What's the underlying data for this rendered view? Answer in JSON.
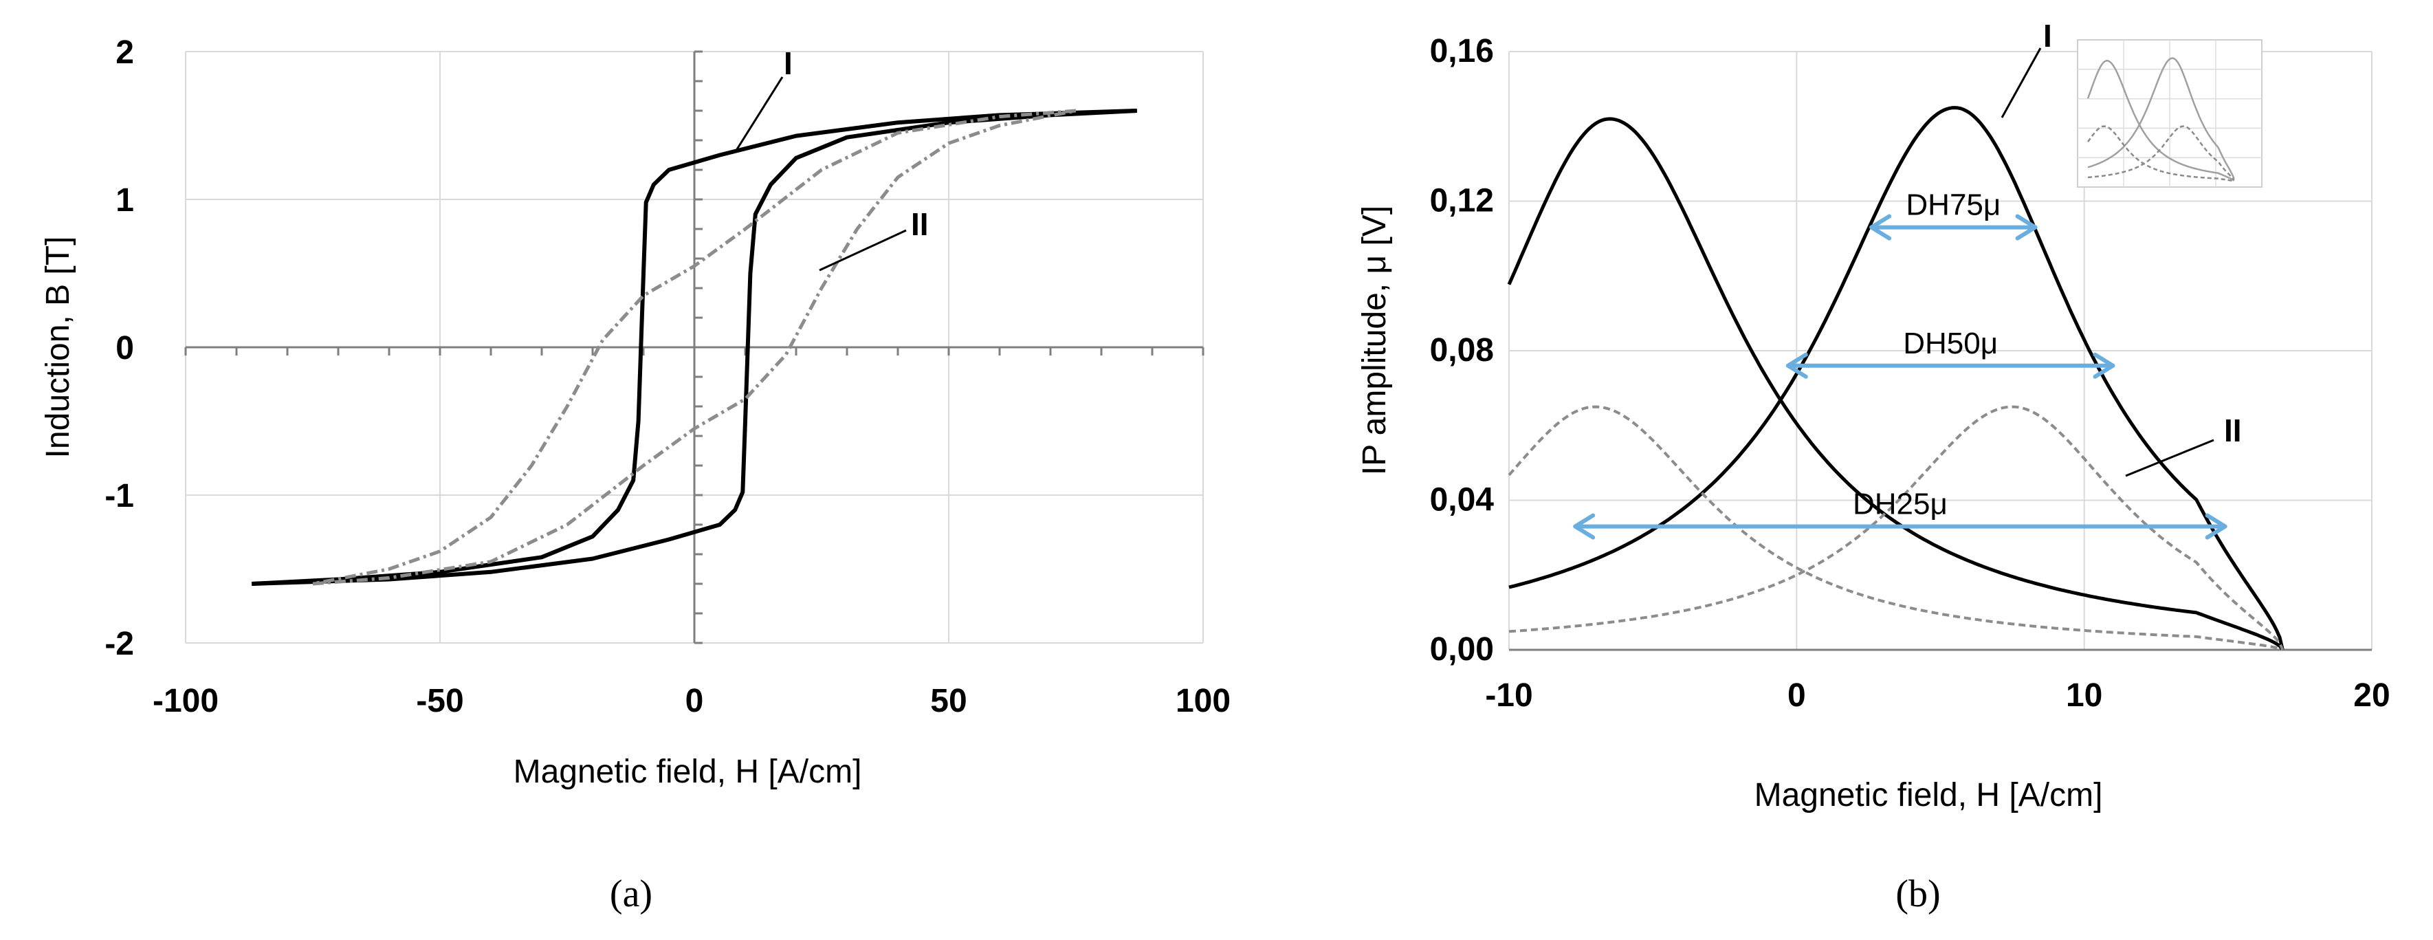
{
  "chart_data": [
    {
      "id": "a",
      "type": "line",
      "caption": "(a)",
      "xlabel": "Magnetic field, H [A/cm]",
      "ylabel": "Induction, B [T]",
      "xlim": [
        -100,
        100
      ],
      "ylim": [
        -2,
        2
      ],
      "xticks": [
        -100,
        -50,
        0,
        50,
        100
      ],
      "yticks": [
        -2,
        -1,
        0,
        1,
        2
      ],
      "xtick_labels": [
        "-100",
        "-50",
        "0",
        "50",
        "100"
      ],
      "ytick_labels": [
        "-2",
        "-1",
        "0",
        "1",
        "2"
      ],
      "grid": true,
      "annotations": [
        "I",
        "II"
      ],
      "series": [
        {
          "name": "I",
          "style": "solid-black",
          "descending_branch": [
            [
              87,
              1.6
            ],
            [
              60,
              1.57
            ],
            [
              40,
              1.52
            ],
            [
              20,
              1.43
            ],
            [
              5,
              1.3
            ],
            [
              -5,
              1.2
            ],
            [
              -8,
              1.1
            ],
            [
              -9.5,
              0.98
            ],
            [
              -10,
              0.5
            ],
            [
              -10.5,
              0
            ],
            [
              -11,
              -0.5
            ],
            [
              -12,
              -0.9
            ],
            [
              -15,
              -1.1
            ],
            [
              -20,
              -1.28
            ],
            [
              -30,
              -1.42
            ],
            [
              -50,
              -1.52
            ],
            [
              -70,
              -1.57
            ],
            [
              -87,
              -1.6
            ]
          ],
          "ascending_branch": [
            [
              -87,
              -1.6
            ],
            [
              -60,
              -1.57
            ],
            [
              -40,
              -1.52
            ],
            [
              -20,
              -1.43
            ],
            [
              -5,
              -1.3
            ],
            [
              5,
              -1.2
            ],
            [
              8,
              -1.1
            ],
            [
              9.5,
              -0.98
            ],
            [
              10,
              -0.5
            ],
            [
              10.5,
              0
            ],
            [
              11,
              0.5
            ],
            [
              12,
              0.9
            ],
            [
              15,
              1.1
            ],
            [
              20,
              1.28
            ],
            [
              30,
              1.42
            ],
            [
              50,
              1.52
            ],
            [
              70,
              1.57
            ],
            [
              87,
              1.6
            ]
          ]
        },
        {
          "name": "II",
          "style": "dashed-grey",
          "descending_branch": [
            [
              75,
              1.6
            ],
            [
              60,
              1.56
            ],
            [
              40,
              1.45
            ],
            [
              25,
              1.2
            ],
            [
              10,
              0.8
            ],
            [
              0,
              0.55
            ],
            [
              -10,
              0.35
            ],
            [
              -18,
              0.05
            ],
            [
              -25,
              -0.4
            ],
            [
              -32,
              -0.8
            ],
            [
              -40,
              -1.15
            ],
            [
              -50,
              -1.38
            ],
            [
              -60,
              -1.5
            ],
            [
              -75,
              -1.6
            ]
          ],
          "ascending_branch": [
            [
              -75,
              -1.6
            ],
            [
              -60,
              -1.56
            ],
            [
              -40,
              -1.45
            ],
            [
              -25,
              -1.2
            ],
            [
              -10,
              -0.8
            ],
            [
              0,
              -0.55
            ],
            [
              10,
              -0.35
            ],
            [
              18,
              -0.05
            ],
            [
              25,
              0.4
            ],
            [
              32,
              0.8
            ],
            [
              40,
              1.15
            ],
            [
              50,
              1.38
            ],
            [
              60,
              1.5
            ],
            [
              75,
              1.6
            ]
          ]
        }
      ]
    },
    {
      "id": "b",
      "type": "line",
      "caption": "(b)",
      "xlabel": "Magnetic field, H [A/cm]",
      "ylabel": "IP amplitude, μ [V]",
      "xlim": [
        -10,
        20
      ],
      "ylim": [
        0,
        0.16
      ],
      "xticks": [
        -10,
        0,
        10,
        20
      ],
      "yticks": [
        0,
        0.04,
        0.08,
        0.12,
        0.16
      ],
      "xtick_labels": [
        "-10",
        "0",
        "10",
        "20"
      ],
      "ytick_labels": [
        "0,00",
        "0,04",
        "0,08",
        "0,12",
        "0,16"
      ],
      "grid": true,
      "annotations": [
        "I",
        "II"
      ],
      "width_markers": [
        {
          "label": "DH75μ",
          "y": 0.113,
          "x_from": 2.6,
          "x_to": 8.3
        },
        {
          "label": "DH50μ",
          "y": 0.076,
          "x_from": -0.3,
          "x_to": 11.0
        },
        {
          "label": "DH25μ",
          "y": 0.033,
          "x_from": -7.7,
          "x_to": 14.9
        }
      ],
      "series": [
        {
          "name": "I",
          "style": "solid-black",
          "peaks": [
            {
              "center": 5.5,
              "amplitude": 0.145,
              "half_width_left": 5.6,
              "half_width_right": 5.2
            },
            {
              "center": -6.5,
              "amplitude": 0.142,
              "half_width_left": 5.2,
              "half_width_right": 5.6
            }
          ],
          "x_end": 16.9
        },
        {
          "name": "II",
          "style": "dashed-grey",
          "peaks": [
            {
              "center": 7.5,
              "amplitude": 0.065,
              "half_width_left": 5.0,
              "half_width_right": 4.8
            },
            {
              "center": -7.0,
              "amplitude": 0.065,
              "half_width_left": 4.8,
              "half_width_right": 5.0
            }
          ],
          "x_end": 16.9
        }
      ]
    }
  ]
}
